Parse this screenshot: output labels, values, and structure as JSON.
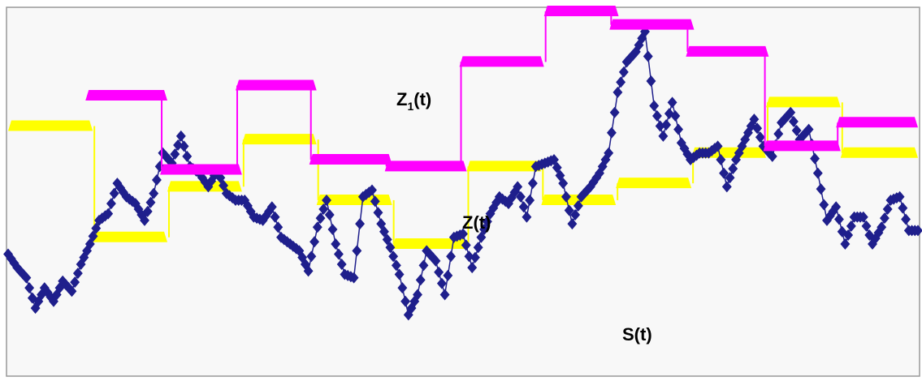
{
  "chart_data": {
    "type": "line",
    "title": "",
    "xlabel": "",
    "ylabel": "",
    "xlim": [
      0,
      100
    ],
    "ylim": [
      0,
      100
    ],
    "grid": false,
    "plot_background": "#f8f8f8",
    "border_color": "#999999",
    "annotations": {
      "z1": {
        "base": "Z",
        "sub": "1",
        "tail": "(t)"
      },
      "z": {
        "text": "Z(t)"
      },
      "s": {
        "text": "S(t)"
      }
    },
    "series": [
      {
        "key": "S",
        "color": "#1f1f8c",
        "marker": "diamond",
        "x": [
          0,
          1,
          2,
          3,
          4,
          5,
          6,
          7,
          8,
          9,
          10,
          11,
          12,
          13,
          14,
          15,
          16,
          17,
          18,
          19,
          20,
          21,
          22,
          23,
          24,
          25,
          26,
          27,
          28,
          29,
          30,
          31,
          32,
          33,
          34,
          35,
          36,
          37,
          38,
          39,
          40,
          41,
          42,
          43,
          44,
          45,
          46,
          47,
          48,
          49,
          50,
          51,
          52,
          53,
          54,
          55,
          56,
          57,
          58,
          59,
          60,
          61,
          62,
          63,
          64,
          65,
          66,
          67,
          68,
          69,
          70,
          71,
          72,
          73,
          74,
          75,
          76,
          77,
          78,
          79,
          80,
          81,
          82,
          83,
          84,
          85,
          86,
          87,
          88,
          89,
          90,
          91,
          92,
          93,
          94,
          95,
          96,
          97,
          98,
          99,
          100
        ],
        "y": [
          28,
          24,
          21,
          12,
          18,
          14,
          20,
          17,
          25,
          31,
          38,
          40,
          49,
          45,
          43,
          38,
          46,
          58,
          55,
          63,
          54,
          52,
          48,
          53,
          46,
          44,
          44,
          39,
          38,
          42,
          33,
          31,
          29,
          23,
          36,
          44,
          31,
          22,
          21,
          45,
          47,
          37,
          30,
          22,
          10,
          16,
          29,
          26,
          16,
          33,
          34,
          24,
          33,
          40,
          45,
          43,
          48,
          39,
          54,
          55,
          56,
          49,
          37,
          45,
          48,
          52,
          58,
          76,
          85,
          88,
          94,
          72,
          63,
          73,
          61,
          56,
          58,
          58,
          60,
          48,
          56,
          62,
          68,
          60,
          57,
          67,
          70,
          62,
          65,
          52,
          38,
          42,
          31,
          39,
          39,
          31,
          36,
          44,
          45,
          35,
          35
        ]
      },
      {
        "key": "Z",
        "color": "#ffff00",
        "steps": [
          {
            "x0": 0,
            "x1": 9.3,
            "y": 66
          },
          {
            "x0": 9.3,
            "x1": 17.5,
            "y": 33
          },
          {
            "x0": 17.5,
            "x1": 25.7,
            "y": 48
          },
          {
            "x0": 25.7,
            "x1": 33.9,
            "y": 62
          },
          {
            "x0": 33.9,
            "x1": 42.2,
            "y": 44
          },
          {
            "x0": 42.2,
            "x1": 50.4,
            "y": 31
          },
          {
            "x0": 50.4,
            "x1": 58.6,
            "y": 54
          },
          {
            "x0": 58.6,
            "x1": 66.8,
            "y": 44
          },
          {
            "x0": 66.8,
            "x1": 75.1,
            "y": 49
          },
          {
            "x0": 75.1,
            "x1": 83.3,
            "y": 58
          },
          {
            "x0": 83.3,
            "x1": 91.5,
            "y": 73
          },
          {
            "x0": 91.5,
            "x1": 100,
            "y": 58
          }
        ]
      },
      {
        "key": "Z1",
        "color": "#ff00ff",
        "steps": [
          {
            "x0": 8.5,
            "x1": 17.5,
            "y": 75
          },
          {
            "x0": 16.7,
            "x1": 25.7,
            "y": 53
          },
          {
            "x0": 25,
            "x1": 33.9,
            "y": 78
          },
          {
            "x0": 33.1,
            "x1": 42.2,
            "y": 56
          },
          {
            "x0": 41.4,
            "x1": 50.4,
            "y": 54
          },
          {
            "x0": 49.6,
            "x1": 58.9,
            "y": 85
          },
          {
            "x0": 58.9,
            "x1": 67.1,
            "y": 100
          },
          {
            "x0": 66.1,
            "x1": 75.4,
            "y": 96
          },
          {
            "x0": 74.5,
            "x1": 83.6,
            "y": 88
          },
          {
            "x0": 83,
            "x1": 91.5,
            "y": 60
          },
          {
            "x0": 91,
            "x1": 100,
            "y": 67
          }
        ]
      }
    ]
  }
}
